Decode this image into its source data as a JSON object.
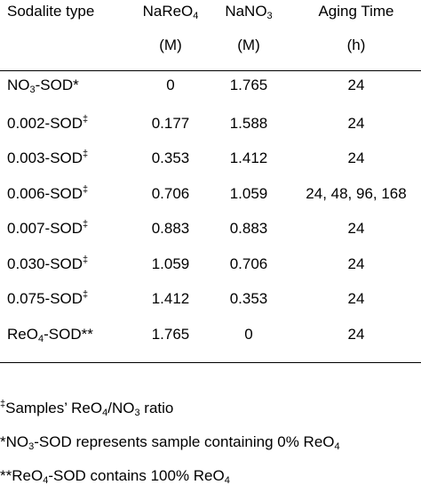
{
  "table": {
    "headers": {
      "col0": "Sodalite type",
      "col1_name": "NaReO",
      "col1_sub": "4",
      "col1_unit": "(M)",
      "col2_name": "NaNO",
      "col2_sub": "3",
      "col2_unit": "(M)",
      "col3_name": "Aging Time",
      "col3_unit": "(h)"
    },
    "rows": [
      {
        "type_pre": "NO",
        "type_sub": "3",
        "type_post": "-SOD*",
        "type_sup": "",
        "nareo4": "0",
        "nano3": "1.765",
        "aging": "24"
      },
      {
        "type_pre": "0.002-SOD",
        "type_sub": "",
        "type_post": "",
        "type_sup": "‡",
        "nareo4": "0.177",
        "nano3": "1.588",
        "aging": "24"
      },
      {
        "type_pre": "0.003-SOD",
        "type_sub": "",
        "type_post": "",
        "type_sup": "‡",
        "nareo4": "0.353",
        "nano3": "1.412",
        "aging": "24"
      },
      {
        "type_pre": "0.006-SOD",
        "type_sub": "",
        "type_post": "",
        "type_sup": "‡",
        "nareo4": "0.706",
        "nano3": "1.059",
        "aging": "24, 48, 96, 168"
      },
      {
        "type_pre": "0.007-SOD",
        "type_sub": "",
        "type_post": "",
        "type_sup": "‡",
        "nareo4": "0.883",
        "nano3": "0.883",
        "aging": "24"
      },
      {
        "type_pre": "0.030-SOD",
        "type_sub": "",
        "type_post": "",
        "type_sup": "‡",
        "nareo4": "1.059",
        "nano3": "0.706",
        "aging": "24"
      },
      {
        "type_pre": "0.075-SOD",
        "type_sub": "",
        "type_post": "",
        "type_sup": "‡",
        "nareo4": "1.412",
        "nano3": "0.353",
        "aging": "24"
      },
      {
        "type_pre": "ReO",
        "type_sub": "4",
        "type_post": "-SOD**",
        "type_sup": "",
        "nareo4": "1.765",
        "nano3": "0",
        "aging": "24"
      }
    ]
  },
  "footnotes": {
    "n1_sup": "‡",
    "n1_a": "Samples’ ReO",
    "n1_sub1": "4",
    "n1_b": "/NO",
    "n1_sub2": "3",
    "n1_c": " ratio",
    "n2_a": "*NO",
    "n2_sub1": "3",
    "n2_b": "-SOD represents sample containing 0% ReO",
    "n2_sub2": "4",
    "n3_a": "**ReO",
    "n3_sub1": "4",
    "n3_b": "-SOD contains 100% ReO",
    "n3_sub2": "4"
  }
}
